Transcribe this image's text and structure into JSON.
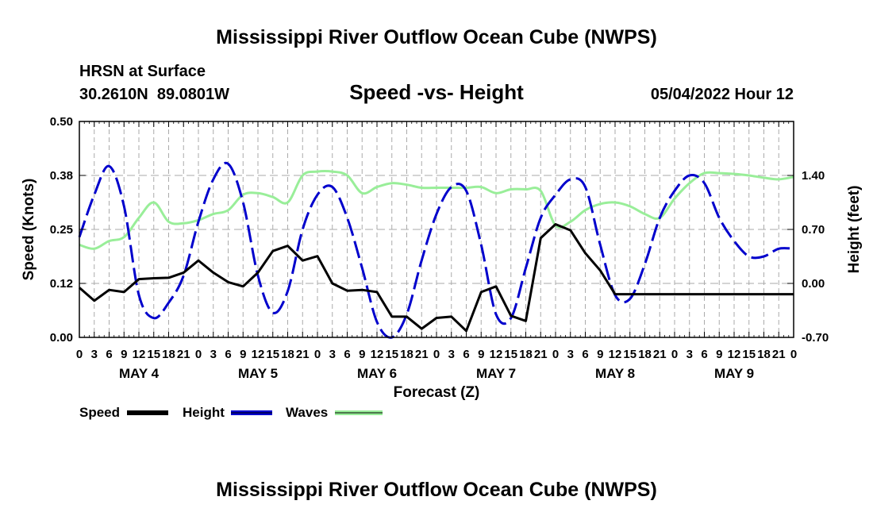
{
  "title": "Mississippi River Outflow Ocean Cube (NWPS)",
  "bottom_title": "Mississippi River Outflow Ocean Cube (NWPS)",
  "station": {
    "name": "HRSN at Surface",
    "coords": "30.2610N  89.0801W"
  },
  "subtitle": "Speed -vs- Height",
  "run_time": "05/04/2022 Hour 12",
  "colors": {
    "speed": "#000000",
    "height": "#0000cc",
    "waves": "#99ee99",
    "grid": "#aaaaaa"
  },
  "chart_data": {
    "type": "line",
    "title": "Speed -vs- Height",
    "xlabel": "Forecast (Z)",
    "ylabel": "Speed (Knots)",
    "y2label": "Height (feet)",
    "x_unit": "hours since May 4 00Z",
    "xlim": [
      0,
      144
    ],
    "ylim": [
      0,
      0.5
    ],
    "y2lim": [
      -0.7,
      2.1
    ],
    "grid": true,
    "y_ticks": [
      "0.00",
      "0.12",
      "0.25",
      "0.38",
      "0.50"
    ],
    "y_tick_values": [
      0,
      0.125,
      0.25,
      0.375,
      0.5
    ],
    "y2_ticks": [
      "-0.70",
      "0.00",
      "0.70",
      "1.40"
    ],
    "y2_tick_values": [
      -0.7,
      0,
      0.7,
      1.4
    ],
    "x_tick_hours": [
      0,
      3,
      6,
      9,
      12,
      15,
      18,
      21,
      24,
      27,
      30,
      33,
      36,
      39,
      42,
      45,
      48,
      51,
      54,
      57,
      60,
      63,
      66,
      69,
      72,
      75,
      78,
      81,
      84,
      87,
      90,
      93,
      96,
      99,
      102,
      105,
      108,
      111,
      114,
      117,
      120,
      123,
      126,
      129,
      132,
      135,
      138,
      141,
      144
    ],
    "x_tick_labels": [
      "0",
      "3",
      "6",
      "9",
      "12",
      "15",
      "18",
      "21",
      "0",
      "3",
      "6",
      "9",
      "12",
      "15",
      "18",
      "21",
      "0",
      "3",
      "6",
      "9",
      "12",
      "15",
      "18",
      "21",
      "0",
      "3",
      "6",
      "9",
      "12",
      "15",
      "18",
      "21",
      "0",
      "3",
      "6",
      "9",
      "12",
      "15",
      "18",
      "21",
      "0",
      "3",
      "6",
      "9",
      "12",
      "15",
      "18",
      "21",
      "0"
    ],
    "day_labels": [
      {
        "label": "MAY 4",
        "hour": 12
      },
      {
        "label": "MAY 5",
        "hour": 36
      },
      {
        "label": "MAY 6",
        "hour": 60
      },
      {
        "label": "MAY 7",
        "hour": 84
      },
      {
        "label": "MAY 8",
        "hour": 108
      },
      {
        "label": "MAY 9",
        "hour": 132
      }
    ],
    "series": [
      {
        "name": "Speed",
        "axis": "left",
        "style": "solid",
        "x": [
          0,
          3,
          6,
          9,
          12,
          15,
          18,
          21,
          24,
          27,
          30,
          33,
          36,
          39,
          42,
          45,
          48,
          51,
          54,
          57,
          60,
          63,
          66,
          69,
          72,
          75,
          78,
          81,
          84,
          87,
          90,
          93,
          96,
          99,
          102,
          105,
          108,
          111,
          144
        ],
        "y": [
          0.115,
          0.085,
          0.11,
          0.105,
          0.135,
          0.137,
          0.138,
          0.15,
          0.178,
          0.15,
          0.128,
          0.118,
          0.15,
          0.2,
          0.212,
          0.178,
          0.188,
          0.125,
          0.108,
          0.11,
          0.105,
          0.048,
          0.048,
          0.02,
          0.045,
          0.048,
          0.015,
          0.105,
          0.118,
          0.05,
          0.038,
          0.23,
          0.262,
          0.248,
          0.195,
          0.155,
          0.1,
          0.1,
          0.1
        ]
      },
      {
        "name": "Height",
        "axis": "right",
        "style": "dashed",
        "x": [
          0,
          3,
          6,
          9,
          12,
          15,
          18,
          21,
          24,
          27,
          30,
          33,
          36,
          39,
          42,
          45,
          48,
          51,
          54,
          57,
          60,
          63,
          66,
          69,
          72,
          75,
          78,
          81,
          84,
          87,
          90,
          93,
          96,
          99,
          102,
          105,
          108,
          111,
          114,
          117,
          120,
          123,
          126,
          129,
          132,
          135,
          138,
          141,
          144
        ],
        "y": [
          0.6,
          1.15,
          1.52,
          1.0,
          -0.15,
          -0.45,
          -0.25,
          0.1,
          0.8,
          1.35,
          1.55,
          1.05,
          0.1,
          -0.38,
          -0.1,
          0.7,
          1.15,
          1.25,
          0.85,
          0.2,
          -0.5,
          -0.7,
          -0.4,
          0.3,
          0.9,
          1.25,
          1.2,
          0.5,
          -0.4,
          -0.45,
          0.2,
          0.85,
          1.15,
          1.35,
          1.25,
          0.5,
          -0.15,
          -0.2,
          0.25,
          0.85,
          1.2,
          1.4,
          1.3,
          0.85,
          0.55,
          0.35,
          0.35,
          0.45,
          0.45
        ]
      },
      {
        "name": "Waves",
        "axis": "right",
        "style": "solid",
        "x": [
          0,
          3,
          6,
          9,
          12,
          15,
          18,
          21,
          24,
          27,
          30,
          33,
          36,
          39,
          42,
          45,
          48,
          51,
          54,
          57,
          60,
          63,
          66,
          69,
          72,
          75,
          78,
          81,
          84,
          87,
          90,
          93,
          96,
          99,
          102,
          105,
          108,
          111,
          114,
          117,
          120,
          123,
          126,
          129,
          132,
          135,
          138,
          141,
          144
        ],
        "y": [
          0.5,
          0.45,
          0.55,
          0.6,
          0.85,
          1.05,
          0.8,
          0.78,
          0.82,
          0.9,
          0.95,
          1.15,
          1.17,
          1.12,
          1.05,
          1.4,
          1.45,
          1.45,
          1.4,
          1.17,
          1.25,
          1.3,
          1.28,
          1.24,
          1.24,
          1.24,
          1.24,
          1.25,
          1.17,
          1.22,
          1.22,
          1.2,
          0.75,
          0.8,
          0.95,
          1.03,
          1.05,
          1.0,
          0.9,
          0.85,
          1.1,
          1.3,
          1.43,
          1.43,
          1.42,
          1.4,
          1.37,
          1.35,
          1.38
        ]
      }
    ]
  },
  "legend": [
    {
      "label": "Speed"
    },
    {
      "label": "Height"
    },
    {
      "label": "Waves"
    }
  ]
}
